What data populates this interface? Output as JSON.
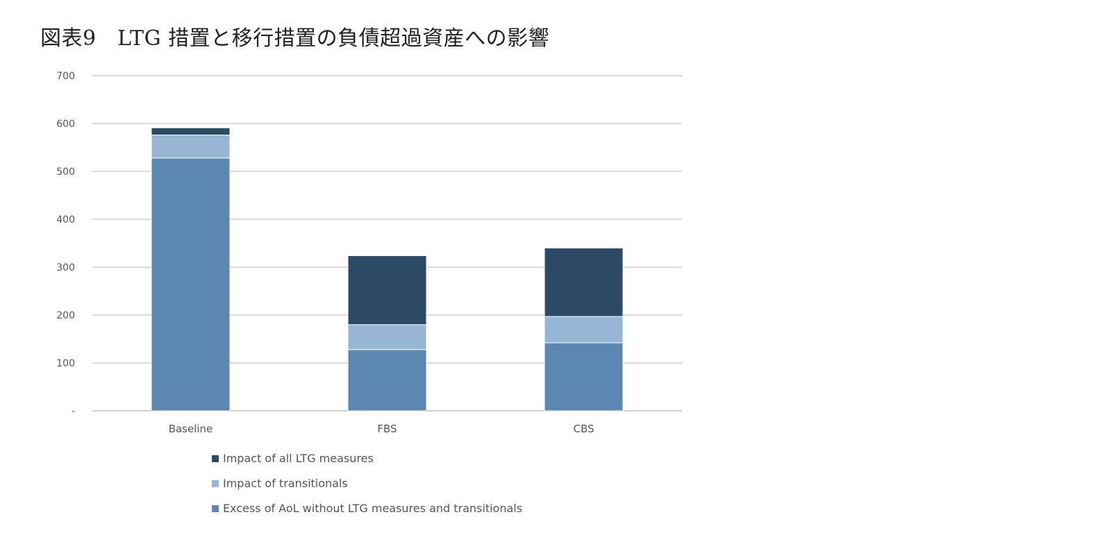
{
  "title": "図表9　LTG 措置と移行措置の負債超過資産への影響",
  "chart_data": {
    "type": "bar",
    "stacked": true,
    "categories": [
      "Baseline",
      "FBS",
      "CBS"
    ],
    "series": [
      {
        "name": "Excess of AoL without LTG measures and transitionals",
        "color": "#5b87b0",
        "values": [
          528,
          128,
          142
        ]
      },
      {
        "name": "Impact of transitionals",
        "color": "#97b6d6",
        "values": [
          48,
          52,
          55
        ]
      },
      {
        "name": "Impact of all LTG measures",
        "color": "#2b4a66",
        "values": [
          15,
          144,
          143
        ]
      }
    ],
    "legend_order": [
      2,
      1,
      0
    ],
    "ylim": [
      0,
      700
    ],
    "yticks": [
      0,
      100,
      200,
      300,
      400,
      500,
      600,
      700
    ],
    "ytick_labels": [
      "-",
      "100",
      "200",
      "300",
      "400",
      "500",
      "600",
      "700"
    ],
    "grid": true,
    "legend_position": "bottom"
  }
}
